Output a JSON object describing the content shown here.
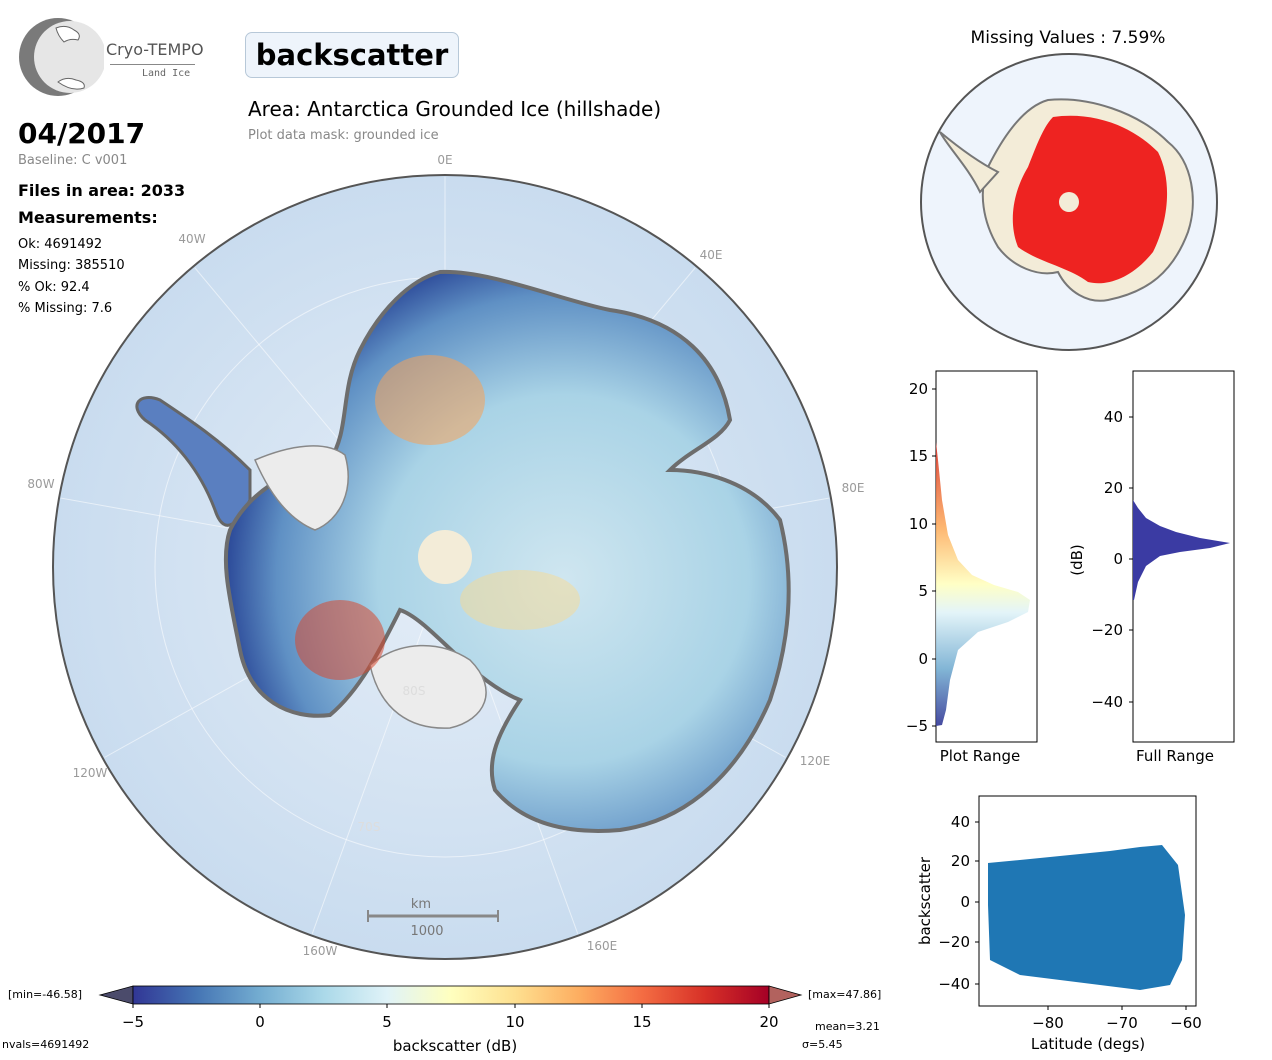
{
  "logo": {
    "title": "Cryo-TEMPO",
    "subtitle": "Land Ice"
  },
  "header": {
    "parameter": "backscatter",
    "area_title": "Area: Antarctica Grounded Ice (hillshade)",
    "mask_note": "Plot data mask: grounded ice"
  },
  "info": {
    "date": "04/2017",
    "baseline": "Baseline: C v001",
    "files": "Files in area: 2033",
    "measurements_heading": "Measurements:",
    "ok": "Ok: 4691492",
    "missing": "Missing: 385510",
    "pct_ok": "% Ok: 92.4",
    "pct_missing": "% Missing: 7.6"
  },
  "map": {
    "lon_labels": [
      "0E",
      "40E",
      "80E",
      "120E",
      "160E",
      "160W",
      "120W",
      "80W",
      "40W"
    ],
    "lat_labels": [
      "80S",
      "70S"
    ],
    "scale_unit": "km",
    "scale_value": "1000"
  },
  "missing_map": {
    "title": "Missing Values : 7.59%"
  },
  "colorbar": {
    "ticks": [
      "−5",
      "0",
      "5",
      "10",
      "15",
      "20"
    ],
    "label": "backscatter (dB)",
    "min_label": "[min=-46.58]",
    "max_label": "[max=47.86]",
    "nvals": "nvals=4691492",
    "mean": "mean=3.21",
    "sigma": "σ=5.45",
    "colors": [
      "#313695",
      "#4575b4",
      "#74add1",
      "#abd9e9",
      "#e0f3f8",
      "#ffffbf",
      "#fee090",
      "#fdae61",
      "#f46d43",
      "#d73027",
      "#a50026"
    ]
  },
  "hist_plot": {
    "xlabel": "Plot Range",
    "ticks": [
      "20",
      "15",
      "10",
      "5",
      "0",
      "−5"
    ]
  },
  "hist_full": {
    "xlabel": "Full Range",
    "ylabel": "(dB)",
    "ticks": [
      "40",
      "20",
      "0",
      "−20",
      "−40"
    ],
    "color": "#3b3ba3"
  },
  "scatter": {
    "xlabel": "Latitude (degs)",
    "ylabel": "backscatter",
    "xticks": [
      "−80",
      "−70",
      "−60"
    ],
    "yticks": [
      "40",
      "20",
      "0",
      "−20",
      "−40"
    ],
    "color": "#1f77b4"
  }
}
